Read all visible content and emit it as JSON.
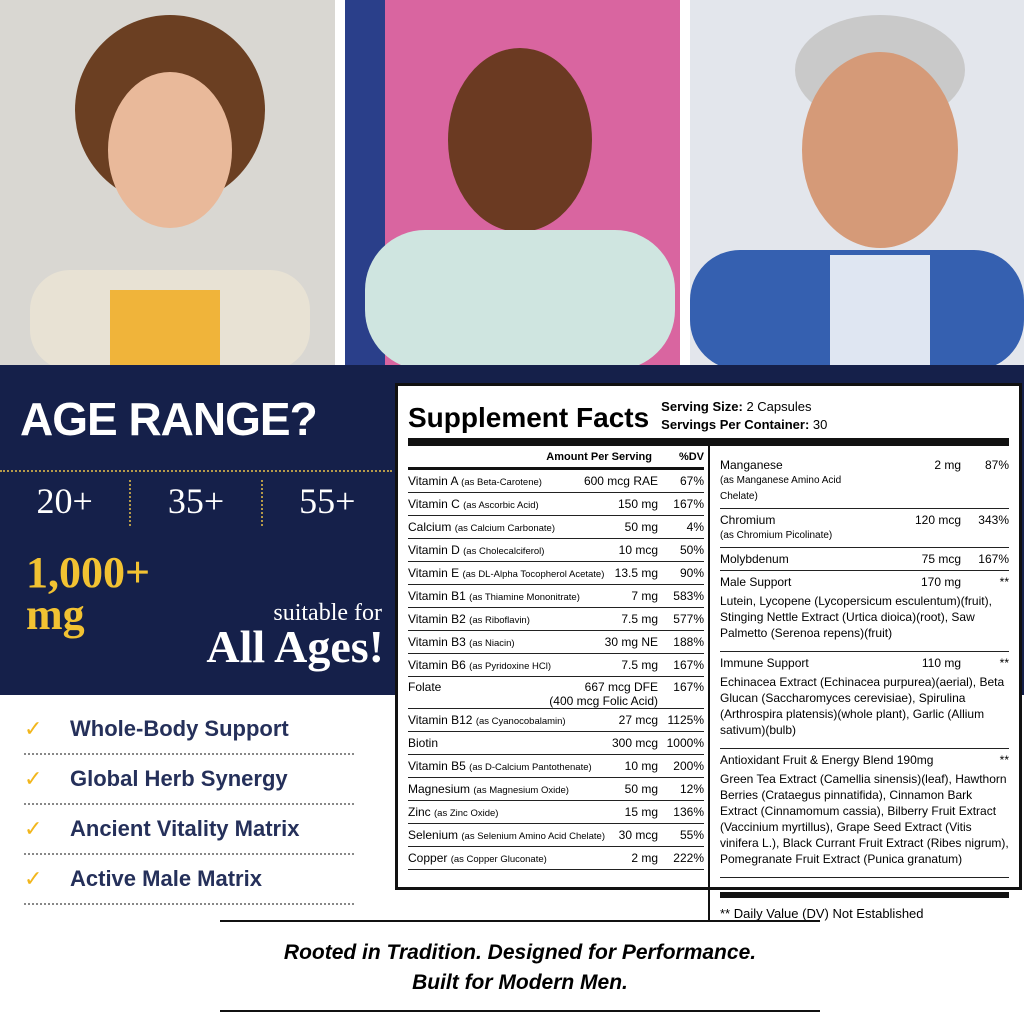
{
  "age_range": {
    "title": "AGE RANGE?",
    "ages": [
      "20+",
      "35+",
      "55+"
    ],
    "amount": "1,000+",
    "unit": "mg",
    "suitable": "suitable for",
    "all_ages": "All Ages!"
  },
  "features": [
    "Whole-Body Support",
    "Global Herb Synergy",
    "Ancient Vitality Matrix",
    "Active Male Matrix"
  ],
  "supplement_facts": {
    "title": "Supplement Facts",
    "serving_size_label": "Serving Size:",
    "serving_size": "2 Capsules",
    "servings_label": "Servings Per Container:",
    "servings": "30",
    "headers": [
      "Amount Per Serving",
      "%DV"
    ],
    "left_rows": [
      {
        "name": "Vitamin A",
        "source": "(as Beta-Carotene)",
        "amount": "600 mcg RAE",
        "dv": "67%"
      },
      {
        "name": "Vitamin C",
        "source": "(as Ascorbic Acid)",
        "amount": "150 mg",
        "dv": "167%"
      },
      {
        "name": "Calcium",
        "source": "(as Calcium Carbonate)",
        "amount": "50 mg",
        "dv": "4%"
      },
      {
        "name": "Vitamin D",
        "source": "(as Cholecalciferol)",
        "amount": "10 mcg",
        "dv": "50%"
      },
      {
        "name": "Vitamin E",
        "source": "(as DL-Alpha Tocopherol Acetate)",
        "amount": "13.5 mg",
        "dv": "90%"
      },
      {
        "name": "Vitamin B1",
        "source": "(as Thiamine Mononitrate)",
        "amount": "7 mg",
        "dv": "583%"
      },
      {
        "name": "Vitamin B2",
        "source": "(as Riboflavin)",
        "amount": "7.5 mg",
        "dv": "577%"
      },
      {
        "name": "Vitamin B3",
        "source": "(as Niacin)",
        "amount": "30 mg NE",
        "dv": "188%"
      },
      {
        "name": "Vitamin B6",
        "source": "(as Pyridoxine HCl)",
        "amount": "7.5 mg",
        "dv": "167%"
      },
      {
        "name": "Folate",
        "amount": "667 mcg DFE",
        "dv": "167%",
        "note": "(400 mcg Folic Acid)"
      },
      {
        "name": "Vitamin B12",
        "source": "(as Cyanocobalamin)",
        "amount": "27 mcg",
        "dv": "1125%"
      },
      {
        "name": "Biotin",
        "amount": "300 mcg",
        "dv": "1000%"
      },
      {
        "name": "Vitamin B5",
        "source": "(as D-Calcium Pantothenate)",
        "amount": "10 mg",
        "dv": "200%"
      },
      {
        "name": "Magnesium",
        "source": "(as Magnesium Oxide)",
        "amount": "50 mg",
        "dv": "12%"
      },
      {
        "name": "Zinc",
        "source": "(as Zinc Oxide)",
        "amount": "15 mg",
        "dv": "136%"
      },
      {
        "name": "Selenium",
        "source": "(as Selenium Amino Acid Chelate)",
        "amount": "30 mcg",
        "dv": "55%"
      },
      {
        "name": "Copper",
        "source": "(as Copper Gluconate)",
        "amount": "2 mg",
        "dv": "222%"
      }
    ],
    "right_rows": [
      {
        "name": "Manganese",
        "source": "(as Manganese Amino Acid Chelate)",
        "amount": "2 mg",
        "dv": "87%"
      },
      {
        "name": "Chromium",
        "source": "(as Chromium Picolinate)",
        "amount": "120 mcg",
        "dv": "343%"
      },
      {
        "name": "Molybdenum",
        "amount": "75 mcg",
        "dv": "167%"
      },
      {
        "name": "Male Support",
        "amount": "170 mg",
        "dv": "**",
        "detail": "Lutein, Lycopene (Lycopersicum esculentum)(fruit), Stinging Nettle Extract (Urtica dioica)(root), Saw Palmetto (Serenoa repens)(fruit)"
      },
      {
        "name": "Immune Support",
        "amount": "110 mg",
        "dv": "**",
        "detail": "Echinacea Extract (Echinacea purpurea)(aerial), Beta Glucan (Saccharomyces cerevisiae), Spirulina (Arthrospira platensis)(whole plant), Garlic (Allium sativum)(bulb)"
      },
      {
        "name": "Antioxidant Fruit & Energy Blend 190mg",
        "dv": "**",
        "detail": "Green Tea Extract (Camellia sinensis)(leaf), Hawthorn Berries (Crataegus pinnatifida), Cinnamon Bark Extract (Cinnamomum cassia), Bilberry Fruit Extract (Vaccinium myrtillus), Grape Seed Extract (Vitis vinifera L.), Black Currant Fruit Extract (Ribes nigrum), Pomegranate Fruit Extract (Punica granatum)"
      }
    ],
    "footnote": "** Daily Value (DV) Not Established"
  },
  "tagline": [
    "Rooted in Tradition. Designed for Performance.",
    "Built for Modern Men."
  ]
}
